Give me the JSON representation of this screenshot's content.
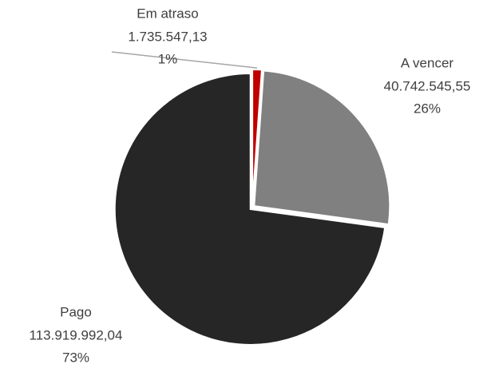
{
  "chart_data": {
    "type": "pie",
    "categories": [
      "Em atraso",
      "A vencer",
      "Pago"
    ],
    "values": [
      1735547.13,
      40742545.55,
      113919992.04
    ],
    "value_labels": [
      "1.735.547,13",
      "40.742.545,55",
      "113.919.992,04"
    ],
    "percentages": [
      1,
      26,
      73
    ],
    "percentage_labels": [
      "1%",
      "26%",
      "73%"
    ],
    "colors": [
      "#c00000",
      "#808080",
      "#262626"
    ]
  }
}
